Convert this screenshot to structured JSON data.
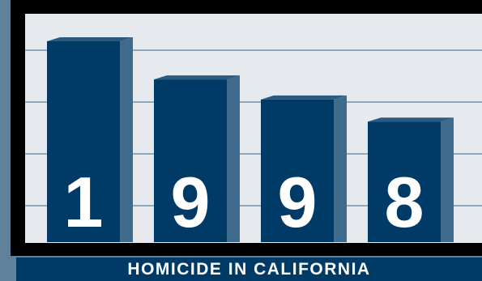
{
  "chart_data": {
    "type": "bar",
    "categories": [
      "1",
      "9",
      "9",
      "8"
    ],
    "values": [
      100,
      81,
      71,
      60
    ],
    "ylim": [
      0,
      100
    ],
    "grid": true,
    "caption": "HOMICIDE IN CALIFORNIA"
  },
  "colors": {
    "bar_front": "#003a66",
    "bar_side": "#3f6c8c",
    "bar_top": "#2a5a80",
    "grid_line": "#3d6582",
    "plot_bg": "#e6eaee"
  }
}
